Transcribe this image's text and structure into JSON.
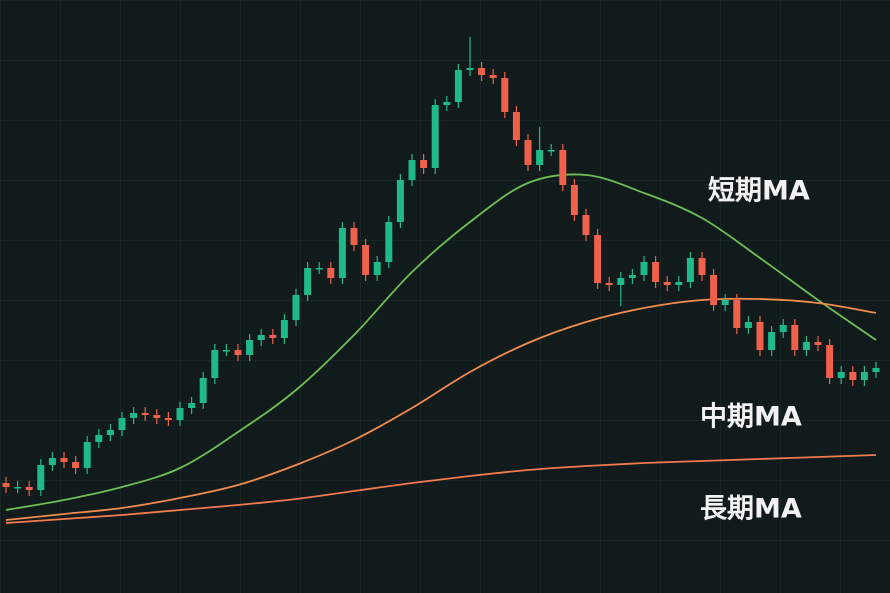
{
  "chart_data": {
    "type": "candlestick",
    "open": [
      110,
      106,
      106,
      103,
      128,
      135,
      131,
      125,
      151,
      158,
      163,
      175,
      180,
      178,
      175,
      173,
      185,
      190,
      215,
      243,
      243,
      238,
      253,
      258,
      255,
      273,
      298,
      325,
      325,
      315,
      365,
      348,
      318,
      331,
      371,
      413,
      433,
      425,
      488,
      491,
      523,
      525,
      518,
      515,
      481,
      453,
      428,
      443,
      443,
      408,
      378,
      358,
      310,
      308,
      315,
      318,
      331,
      311,
      308,
      311,
      335,
      318,
      288,
      293,
      265,
      271,
      243,
      261,
      268,
      243,
      251,
      248,
      215,
      221,
      213,
      221
    ],
    "high": [
      116,
      112,
      112,
      134,
      141,
      141,
      137,
      157,
      164,
      169,
      181,
      186,
      186,
      184,
      181,
      191,
      196,
      221,
      249,
      249,
      249,
      259,
      264,
      264,
      279,
      304,
      331,
      331,
      331,
      371,
      371,
      354,
      337,
      377,
      419,
      439,
      439,
      494,
      497,
      529,
      556,
      531,
      524,
      521,
      487,
      459,
      466,
      449,
      449,
      414,
      384,
      364,
      316,
      321,
      324,
      337,
      337,
      317,
      317,
      341,
      341,
      324,
      299,
      299,
      277,
      277,
      267,
      274,
      274,
      257,
      257,
      254,
      227,
      227,
      227,
      231
    ],
    "low": [
      100,
      100,
      97,
      97,
      122,
      125,
      119,
      119,
      145,
      152,
      157,
      169,
      172,
      169,
      167,
      167,
      179,
      184,
      209,
      237,
      232,
      232,
      247,
      249,
      249,
      267,
      292,
      319,
      309,
      309,
      342,
      312,
      312,
      325,
      365,
      407,
      419,
      419,
      482,
      485,
      517,
      512,
      509,
      475,
      447,
      422,
      422,
      437,
      402,
      372,
      352,
      304,
      302,
      287,
      309,
      312,
      305,
      302,
      302,
      305,
      312,
      282,
      282,
      259,
      259,
      237,
      237,
      255,
      237,
      237,
      242,
      209,
      209,
      207,
      207,
      215
    ],
    "close": [
      106,
      106,
      103,
      128,
      135,
      131,
      125,
      151,
      158,
      163,
      175,
      180,
      178,
      175,
      173,
      185,
      190,
      215,
      243,
      243,
      238,
      253,
      258,
      255,
      273,
      298,
      325,
      325,
      315,
      365,
      348,
      318,
      331,
      371,
      413,
      433,
      425,
      488,
      491,
      523,
      525,
      518,
      515,
      481,
      453,
      428,
      443,
      443,
      408,
      378,
      358,
      310,
      308,
      315,
      318,
      331,
      311,
      308,
      311,
      335,
      318,
      288,
      293,
      265,
      271,
      243,
      261,
      268,
      243,
      251,
      248,
      215,
      221,
      213,
      221,
      225
    ],
    "up_color": "#1fb98a",
    "down_color": "#f0614c",
    "ylim": [
      0,
      593
    ],
    "series": [
      {
        "name": "短期MA",
        "color": "#6cbf55",
        "x": [
          0,
          5,
          10,
          15,
          20,
          25,
          30,
          35,
          40,
          45,
          50,
          55,
          60,
          65,
          70,
          75
        ],
        "values": [
          83,
          93,
          106,
          125,
          161,
          203,
          258,
          321,
          371,
          410,
          418,
          400,
          375,
          335,
          293,
          253
        ]
      },
      {
        "name": "中期MA",
        "color": "#f28c4e",
        "x": [
          0,
          5,
          10,
          15,
          20,
          25,
          30,
          35,
          40,
          45,
          50,
          55,
          60,
          65,
          70,
          75
        ],
        "values": [
          73,
          79,
          85,
          95,
          108,
          128,
          153,
          185,
          221,
          250,
          271,
          285,
          293,
          294,
          290,
          280
        ]
      },
      {
        "name": "長期MA",
        "color": "#f27a4f",
        "x": [
          0,
          5,
          10,
          15,
          20,
          25,
          30,
          35,
          40,
          45,
          50,
          55,
          60,
          65,
          70,
          75
        ],
        "values": [
          70,
          74,
          78,
          83,
          88,
          94,
          102,
          110,
          117,
          123,
          127,
          130,
          132,
          134,
          136,
          138
        ]
      }
    ]
  }
}
